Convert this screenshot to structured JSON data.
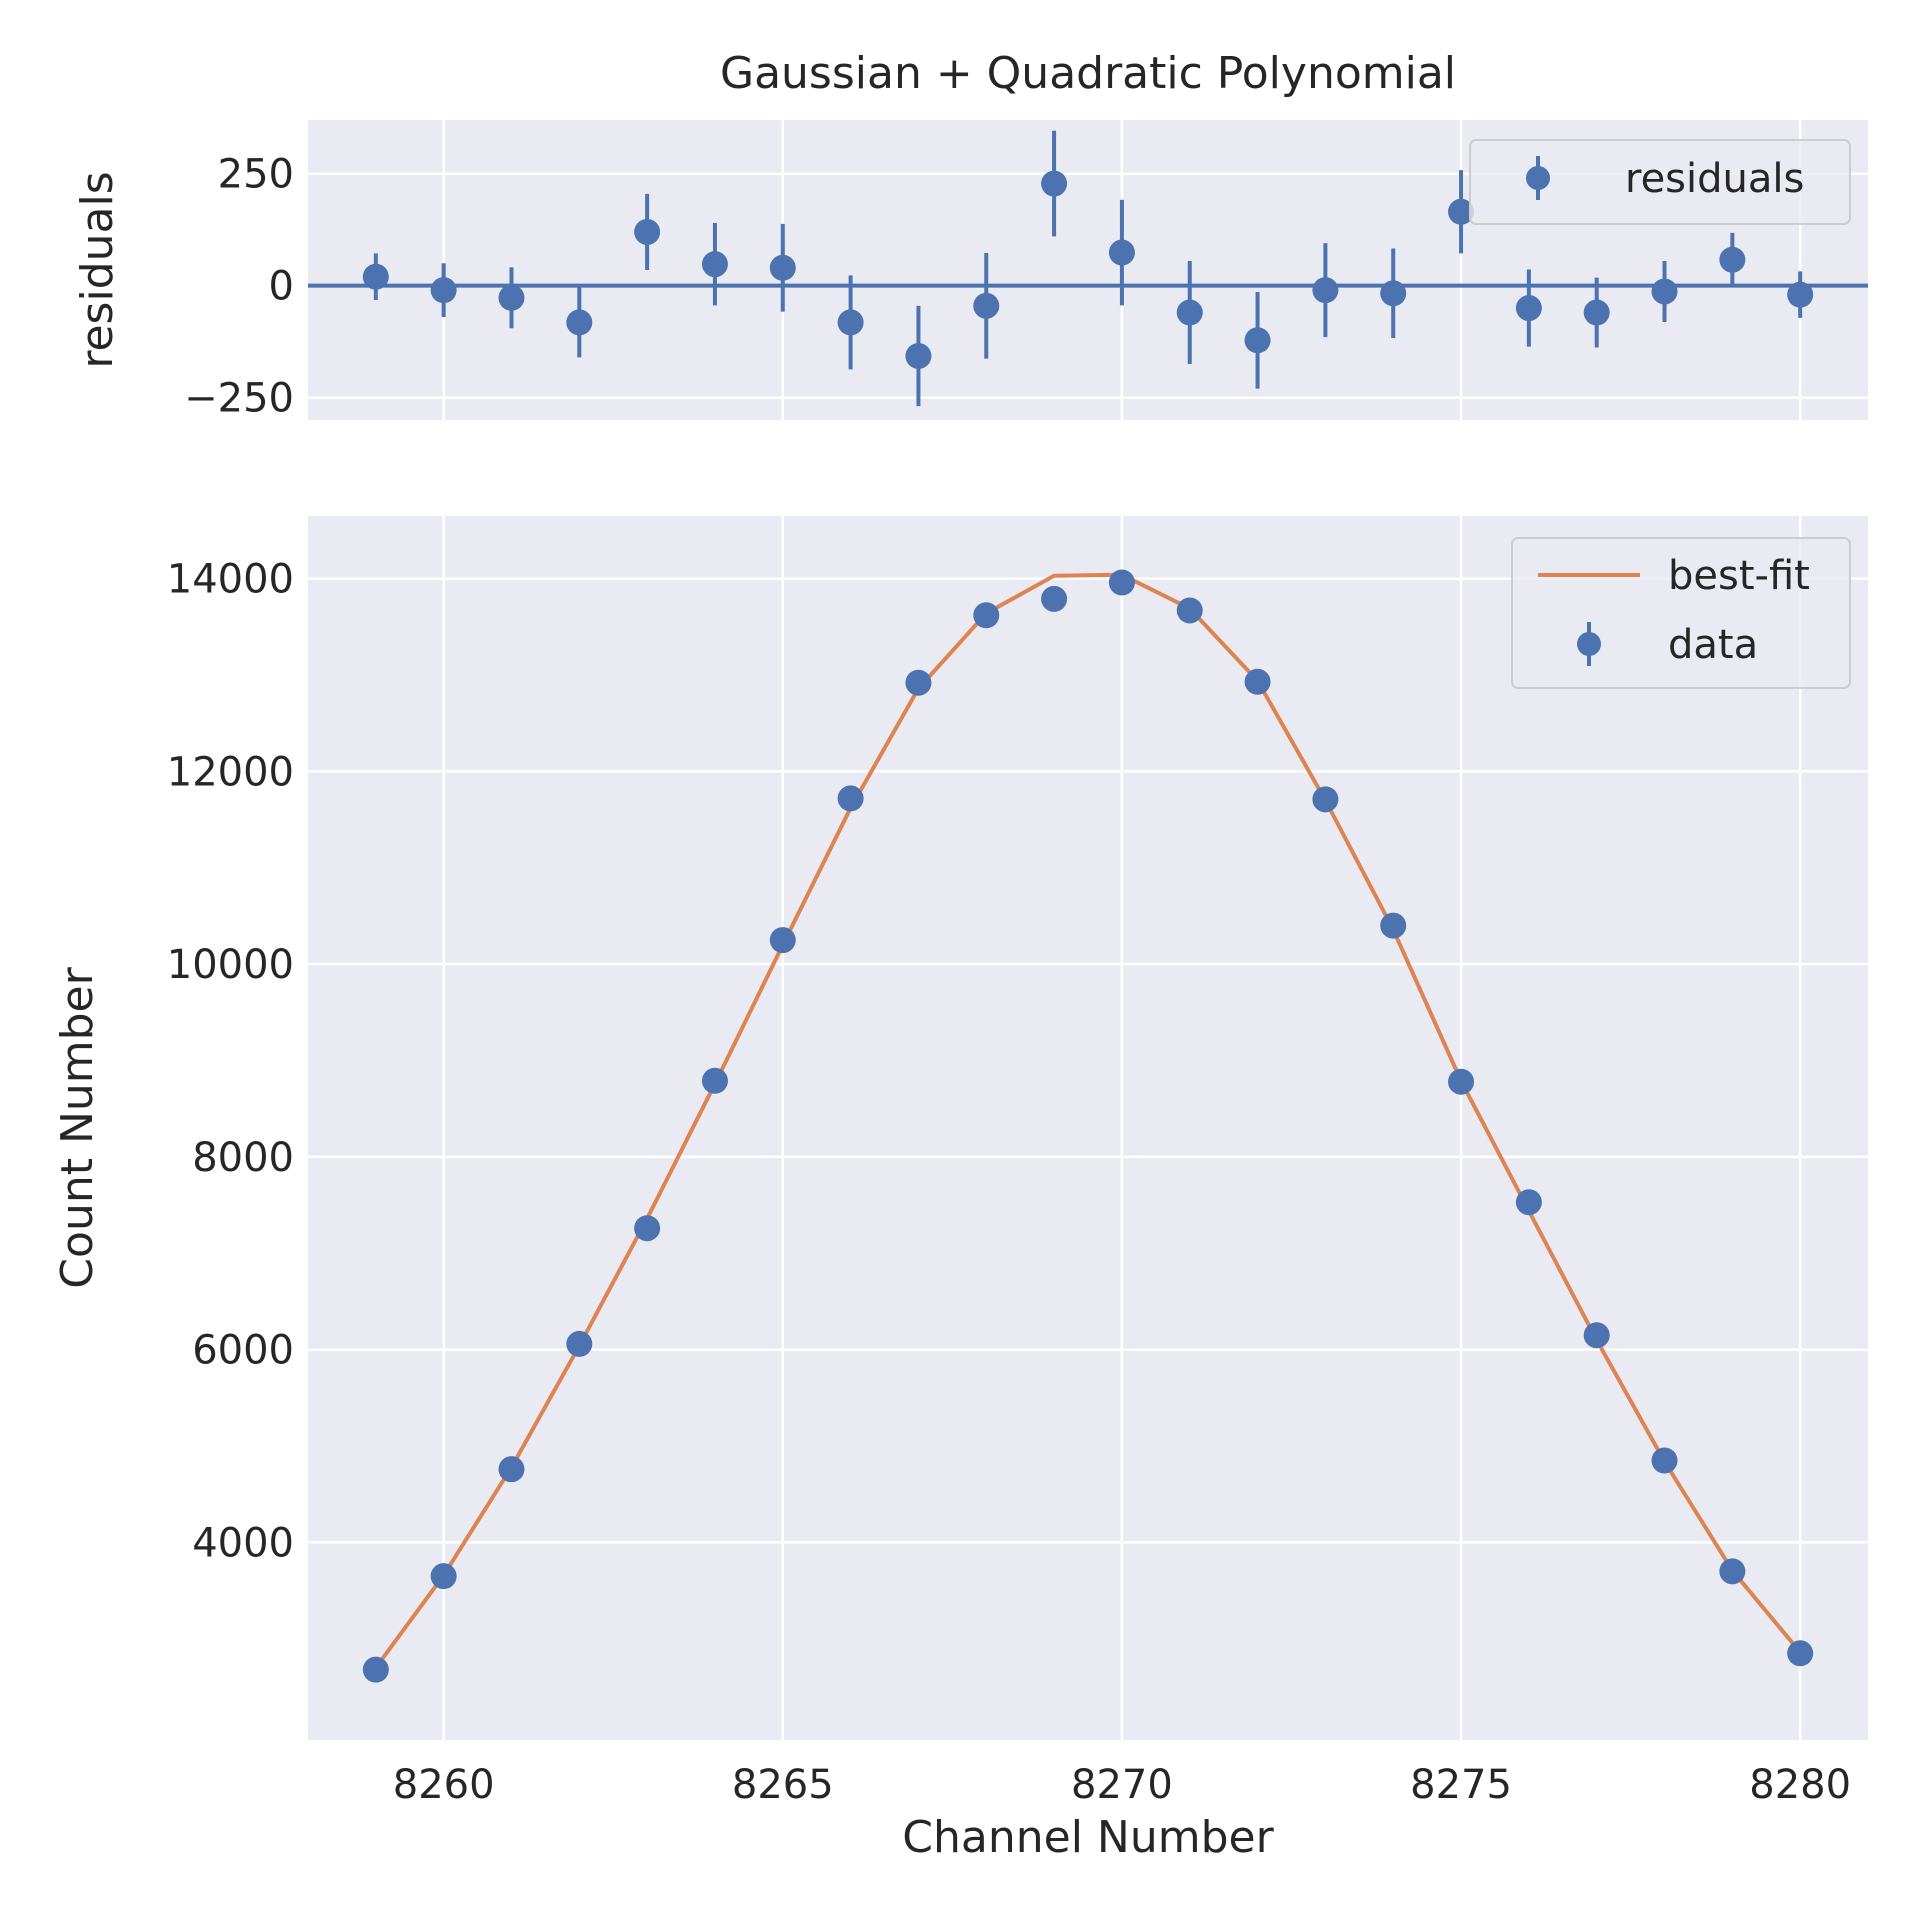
{
  "chart_data": [
    {
      "panel": "residuals",
      "type": "scatter",
      "title": "Gaussian + Quadratic Polynomial",
      "xlabel": "",
      "ylabel": "residuals",
      "xlim": [
        8258,
        8281
      ],
      "ylim": [
        -300,
        370
      ],
      "xticks": [
        8260,
        8265,
        8270,
        8275,
        8280
      ],
      "yticks": [
        -250,
        0,
        250
      ],
      "ytick_labels": [
        "−250",
        "0",
        "250"
      ],
      "grid": true,
      "legend_position": "top-right",
      "reference_line": 0,
      "series": [
        {
          "name": "residuals",
          "color": "#4c72b0",
          "x": [
            8259,
            8260,
            8261,
            8262,
            8263,
            8264,
            8265,
            8266,
            8267,
            8268,
            8269,
            8270,
            8271,
            8272,
            8273,
            8274,
            8275,
            8276,
            8277,
            8278,
            8279,
            8280
          ],
          "y": [
            20,
            -10,
            -27,
            -82,
            120,
            48,
            40,
            -82,
            -157,
            -45,
            228,
            74,
            -60,
            -122,
            -10,
            -17,
            165,
            -50,
            -60,
            -13,
            58,
            -20
          ],
          "err": [
            52,
            60,
            68,
            78,
            85,
            92,
            98,
            105,
            112,
            118,
            118,
            118,
            115,
            108,
            105,
            100,
            93,
            86,
            78,
            68,
            60,
            52
          ]
        }
      ]
    },
    {
      "panel": "main",
      "type": "scatter",
      "title": "",
      "xlabel": "Channel Number",
      "ylabel": "Count Number",
      "xlim": [
        8258,
        8281
      ],
      "ylim": [
        1950,
        14650
      ],
      "xticks": [
        8260,
        8265,
        8270,
        8275,
        8280
      ],
      "yticks": [
        4000,
        6000,
        8000,
        10000,
        12000,
        14000
      ],
      "grid": true,
      "legend_position": "top-right",
      "series": [
        {
          "name": "best-fit",
          "kind": "line",
          "color": "#dd8452",
          "x": [
            8259,
            8260,
            8261,
            8262,
            8263,
            8264,
            8265,
            8266,
            8267,
            8268,
            8269,
            8270,
            8271,
            8272,
            8273,
            8274,
            8275,
            8276,
            8277,
            8278,
            8279,
            8280
          ],
          "y": [
            2700,
            3660,
            4780,
            6040,
            7360,
            8760,
            10200,
            11620,
            12860,
            13640,
            14030,
            14040,
            13690,
            12940,
            11700,
            10360,
            8790,
            7440,
            6100,
            4840,
            3710,
            2860
          ]
        },
        {
          "name": "data",
          "kind": "points",
          "color": "#4c72b0",
          "x": [
            8259,
            8260,
            8261,
            8262,
            8263,
            8264,
            8265,
            8266,
            8267,
            8268,
            8269,
            8270,
            8271,
            8272,
            8273,
            8274,
            8275,
            8276,
            8277,
            8278,
            8279,
            8280
          ],
          "y": [
            2680,
            3650,
            4760,
            6060,
            7260,
            8790,
            10250,
            11720,
            12920,
            13620,
            13790,
            13960,
            13670,
            12930,
            11710,
            10400,
            8780,
            7530,
            6150,
            4850,
            3700,
            2850
          ]
        }
      ]
    }
  ]
}
